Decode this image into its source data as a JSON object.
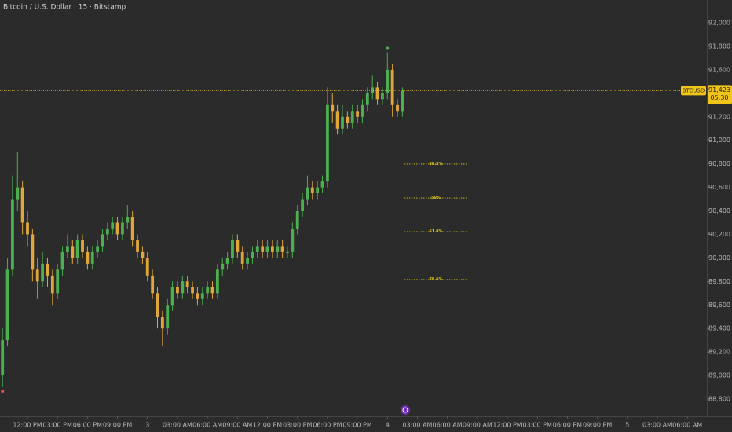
{
  "chart_data": {
    "type": "candlestick",
    "title": "Bitcoin / U.S. Dollar · 15 · Bitstamp",
    "up_color": "#4caf50",
    "down_color": "#e0a63a",
    "x": [
      9.5,
      10,
      10.5,
      11,
      11.5,
      12,
      12.5,
      13,
      13.5,
      14,
      14.5,
      15,
      15.5,
      16,
      16.5,
      17,
      17.5,
      18,
      18.5,
      19,
      19.5,
      20,
      20.5,
      21,
      21.5,
      22,
      22.5,
      23,
      23.5,
      24,
      24.5,
      25,
      25.5,
      26,
      26.5,
      27,
      27.5,
      28,
      28.5,
      29,
      29.5,
      30,
      30.5,
      31,
      31.5,
      32,
      32.5,
      33,
      33.5,
      34,
      34.5,
      35,
      35.5,
      36,
      36.5,
      37,
      37.5,
      38,
      38.5,
      39,
      39.5,
      40,
      40.5,
      41,
      41.5,
      42,
      42.5,
      43,
      43.5,
      44,
      44.5,
      45,
      45.5,
      46,
      46.5,
      47,
      47.5,
      48,
      48.5,
      49,
      49.5
    ],
    "open": [
      89000,
      89300,
      89900,
      90500,
      90600,
      90300,
      90200,
      89900,
      89800,
      89950,
      89850,
      89700,
      89900,
      90050,
      90100,
      90000,
      90150,
      90050,
      89950,
      90050,
      90100,
      90200,
      90250,
      90300,
      90200,
      90300,
      90350,
      90150,
      90050,
      90000,
      89850,
      89700,
      89500,
      89400,
      89600,
      89750,
      89700,
      89800,
      89750,
      89700,
      89650,
      89700,
      89750,
      89700,
      89900,
      89950,
      90000,
      90150,
      90050,
      89950,
      90000,
      90050,
      90100,
      90050,
      90100,
      90050,
      90100,
      90050,
      90050,
      90250,
      90400,
      90500,
      90600,
      90550,
      90600,
      90650,
      91300,
      91250,
      91100,
      91200,
      91150,
      91250,
      91200,
      91300,
      91400,
      91450,
      91350,
      91400,
      91600,
      91300,
      91250
    ],
    "high": [
      89400,
      90000,
      90700,
      90900,
      90650,
      90400,
      90250,
      90000,
      90050,
      90000,
      89900,
      89950,
      90100,
      90200,
      90150,
      90200,
      90200,
      90100,
      90100,
      90150,
      90250,
      90300,
      90350,
      90350,
      90350,
      90450,
      90400,
      90200,
      90100,
      90050,
      89900,
      89750,
      89550,
      89650,
      89800,
      89800,
      89850,
      89850,
      89800,
      89750,
      89750,
      89800,
      89800,
      89950,
      90000,
      90050,
      90200,
      90200,
      90100,
      90050,
      90100,
      90150,
      90150,
      90150,
      90150,
      90150,
      90150,
      90100,
      90300,
      90450,
      90550,
      90700,
      90650,
      90650,
      90700,
      91450,
      91400,
      91300,
      91300,
      91250,
      91300,
      91300,
      91350,
      91450,
      91550,
      91500,
      91450,
      91750,
      91650,
      91350,
      91450
    ],
    "low": [
      88900,
      89250,
      89850,
      90400,
      90200,
      90100,
      89800,
      89650,
      89750,
      89750,
      89600,
      89650,
      89850,
      90000,
      89950,
      89950,
      90000,
      89900,
      89900,
      90000,
      90050,
      90150,
      90200,
      90150,
      90150,
      90250,
      90100,
      90000,
      89950,
      89800,
      89650,
      89400,
      89250,
      89350,
      89550,
      89650,
      89650,
      89700,
      89650,
      89600,
      89600,
      89650,
      89650,
      89650,
      89850,
      89900,
      89950,
      90000,
      89900,
      89900,
      89950,
      90000,
      90000,
      90000,
      90000,
      90000,
      90000,
      90000,
      90000,
      90200,
      90350,
      90450,
      90500,
      90500,
      90550,
      90600,
      91150,
      91050,
      91050,
      91100,
      91100,
      91150,
      91150,
      91250,
      91350,
      91300,
      91300,
      91350,
      91200,
      91200,
      91200
    ],
    "close": [
      89300,
      89900,
      90500,
      90600,
      90300,
      90200,
      89900,
      89800,
      89950,
      89850,
      89700,
      89900,
      90050,
      90100,
      90000,
      90150,
      90050,
      89950,
      90050,
      90100,
      90200,
      90250,
      90300,
      90200,
      90300,
      90350,
      90150,
      90050,
      90000,
      89850,
      89700,
      89500,
      89400,
      89600,
      89750,
      89700,
      89800,
      89750,
      89700,
      89650,
      89700,
      89750,
      89700,
      89900,
      89950,
      90000,
      90150,
      90050,
      89950,
      90000,
      90050,
      90100,
      90050,
      90100,
      90050,
      90100,
      90050,
      90050,
      90250,
      90400,
      90500,
      90600,
      90550,
      90600,
      90650,
      91300,
      91250,
      91100,
      91200,
      91150,
      91250,
      91200,
      91300,
      91400,
      91450,
      91350,
      91400,
      91600,
      91300,
      91250,
      91423
    ],
    "xlim": [
      9.25,
      79.95
    ],
    "xticks": [
      {
        "value": 12,
        "label": "12:00 PM"
      },
      {
        "value": 15,
        "label": "03:00 PM"
      },
      {
        "value": 18,
        "label": "06:00 PM"
      },
      {
        "value": 21,
        "label": "09:00 PM"
      },
      {
        "value": 24,
        "label": "3"
      },
      {
        "value": 27,
        "label": "03:00 AM"
      },
      {
        "value": 30,
        "label": "06:00 AM"
      },
      {
        "value": 33,
        "label": "09:00 AM"
      },
      {
        "value": 36,
        "label": "12:00 PM"
      },
      {
        "value": 39,
        "label": "03:00 PM"
      },
      {
        "value": 42,
        "label": "06:00 PM"
      },
      {
        "value": 45,
        "label": "09:00 PM"
      },
      {
        "value": 48,
        "label": "4"
      },
      {
        "value": 51,
        "label": "03:00 AM"
      },
      {
        "value": 54,
        "label": "06:00 AM"
      },
      {
        "value": 57,
        "label": "09:00 AM"
      },
      {
        "value": 60,
        "label": "12:00 PM"
      },
      {
        "value": 63,
        "label": "03:00 PM"
      },
      {
        "value": 66,
        "label": "06:00 PM"
      },
      {
        "value": 69,
        "label": "09:00 PM"
      },
      {
        "value": 72,
        "label": "5"
      },
      {
        "value": 75,
        "label": "03:00 AM"
      },
      {
        "value": 78,
        "label": "06:00 AM"
      }
    ],
    "ylim": [
      88653,
      92194
    ],
    "yticks": [
      {
        "value": 88800,
        "label": "88,800"
      },
      {
        "value": 89000,
        "label": "89,000"
      },
      {
        "value": 89200,
        "label": "89,200"
      },
      {
        "value": 89400,
        "label": "89,400"
      },
      {
        "value": 89600,
        "label": "89,600"
      },
      {
        "value": 89800,
        "label": "89,800"
      },
      {
        "value": 90000,
        "label": "90,000"
      },
      {
        "value": 90200,
        "label": "90,200"
      },
      {
        "value": 90400,
        "label": "90,400"
      },
      {
        "value": 90600,
        "label": "90,600"
      },
      {
        "value": 90800,
        "label": "90,800"
      },
      {
        "value": 91000,
        "label": "91,000"
      },
      {
        "value": 91200,
        "label": "91,200"
      },
      {
        "value": 91400,
        "label": "91,400"
      },
      {
        "value": 91600,
        "label": "91,600"
      },
      {
        "value": 91800,
        "label": "91,800"
      },
      {
        "value": 92000,
        "label": "92,000"
      }
    ],
    "last": {
      "symbol": "BTCUSD",
      "value": 91423,
      "label": "91,423",
      "countdown": "05:30",
      "color": "#f0c419"
    },
    "fib": {
      "x": [
        49.7,
        56
      ],
      "color": "#d4c21c",
      "levels": [
        {
          "label": "38.2%",
          "value": 90798
        },
        {
          "label": "50%",
          "value": 90510
        },
        {
          "label": "61.8%",
          "value": 90223
        },
        {
          "label": "78.6%",
          "value": 89816
        }
      ]
    }
  }
}
